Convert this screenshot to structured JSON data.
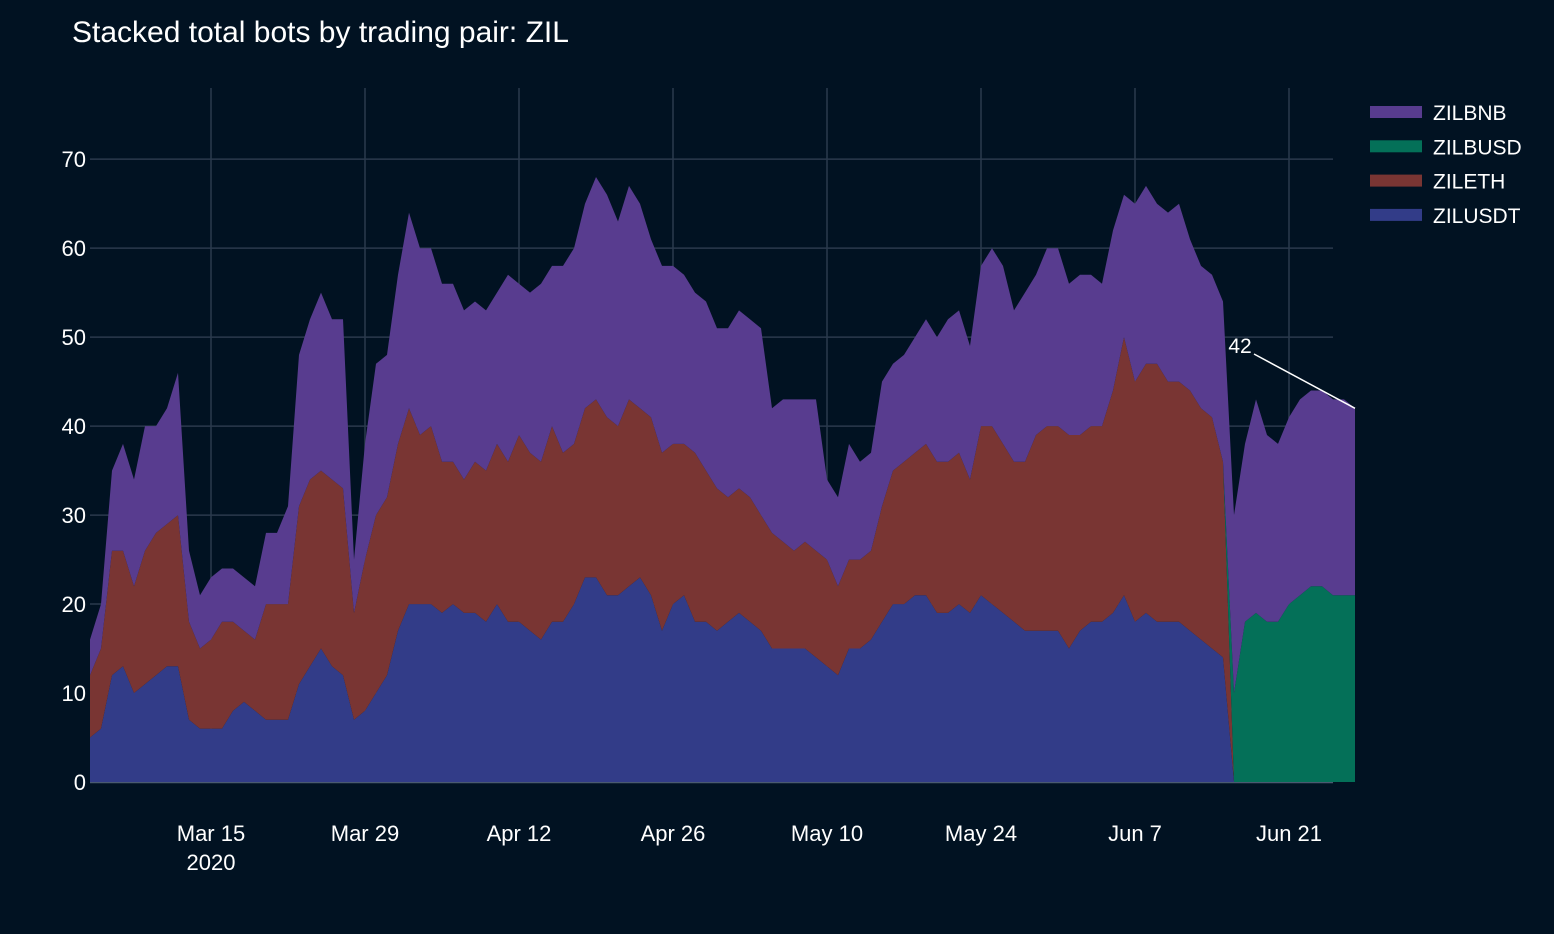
{
  "chart_data": {
    "type": "area",
    "stacked": true,
    "title": "Stacked total bots by trading pair: ZIL",
    "xlabel": "",
    "ylabel": "",
    "x_start": "2020-03-04",
    "x_end": "2020-06-24",
    "x_range": [
      "2020-03-04",
      "2020-06-25"
    ],
    "ylim": [
      0,
      78
    ],
    "y_ticks": [
      0,
      10,
      20,
      30,
      40,
      50,
      60,
      70
    ],
    "x_ticks": [
      {
        "date": "2020-03-15",
        "label": "Mar 15",
        "sublabel": "2020"
      },
      {
        "date": "2020-03-29",
        "label": "Mar 29",
        "sublabel": ""
      },
      {
        "date": "2020-04-12",
        "label": "Apr 12",
        "sublabel": ""
      },
      {
        "date": "2020-04-26",
        "label": "Apr 26",
        "sublabel": ""
      },
      {
        "date": "2020-05-10",
        "label": "May 10",
        "sublabel": ""
      },
      {
        "date": "2020-05-24",
        "label": "May 24",
        "sublabel": ""
      },
      {
        "date": "2020-06-07",
        "label": "Jun 7",
        "sublabel": ""
      },
      {
        "date": "2020-06-21",
        "label": "Jun 21",
        "sublabel": ""
      }
    ],
    "legend_position": "top-right",
    "colors": {
      "ZILUSDT": "#323c88",
      "ZILETH": "#793533",
      "ZILBUSD": "#047058",
      "ZILBNB": "#583c8f"
    },
    "series": [
      {
        "name": "ZILUSDT",
        "values": [
          5,
          6,
          12,
          13,
          10,
          11,
          12,
          13,
          13,
          7,
          6,
          6,
          6,
          8,
          9,
          8,
          7,
          7,
          7,
          11,
          13,
          15,
          13,
          12,
          7,
          8,
          10,
          12,
          17,
          20,
          20,
          20,
          19,
          20,
          19,
          19,
          18,
          20,
          18,
          18,
          17,
          16,
          18,
          18,
          20,
          23,
          23,
          21,
          21,
          22,
          23,
          21,
          17,
          20,
          21,
          18,
          18,
          17,
          18,
          19,
          18,
          17,
          15,
          15,
          15,
          15,
          14,
          13,
          12,
          15,
          15,
          16,
          18,
          20,
          20,
          21,
          21,
          19,
          19,
          20,
          19,
          21,
          20,
          19,
          18,
          17,
          17,
          17,
          17,
          15,
          17,
          18,
          18,
          19,
          21,
          18,
          19,
          18,
          18,
          18,
          17,
          16,
          15,
          14,
          0,
          0,
          0,
          0,
          0,
          0,
          0,
          0,
          0,
          0,
          0,
          0
        ],
        "annotation": "",
        "legend_label": "ZILUSDT"
      },
      {
        "name": "ZILETH",
        "values": [
          7,
          9,
          14,
          13,
          12,
          15,
          16,
          16,
          17,
          11,
          9,
          10,
          12,
          10,
          8,
          8,
          13,
          13,
          13,
          20,
          21,
          20,
          21,
          21,
          12,
          17,
          20,
          20,
          21,
          22,
          19,
          20,
          17,
          16,
          15,
          17,
          17,
          18,
          18,
          21,
          20,
          20,
          22,
          19,
          18,
          19,
          20,
          20,
          19,
          21,
          19,
          20,
          20,
          18,
          17,
          19,
          17,
          16,
          14,
          14,
          14,
          13,
          13,
          12,
          11,
          12,
          12,
          12,
          10,
          10,
          10,
          10,
          13,
          15,
          16,
          16,
          17,
          17,
          17,
          17,
          15,
          19,
          20,
          19,
          18,
          19,
          22,
          23,
          23,
          24,
          22,
          22,
          22,
          25,
          29,
          27,
          28,
          29,
          27,
          27,
          27,
          26,
          26,
          22,
          0,
          0,
          0,
          0,
          0,
          0,
          0,
          0,
          0,
          0,
          0,
          0
        ],
        "annotation": "",
        "legend_label": "ZILETH"
      },
      {
        "name": "ZILBUSD",
        "values": [
          0,
          0,
          0,
          0,
          0,
          0,
          0,
          0,
          0,
          0,
          0,
          0,
          0,
          0,
          0,
          0,
          0,
          0,
          0,
          0,
          0,
          0,
          0,
          0,
          0,
          0,
          0,
          0,
          0,
          0,
          0,
          0,
          0,
          0,
          0,
          0,
          0,
          0,
          0,
          0,
          0,
          0,
          0,
          0,
          0,
          0,
          0,
          0,
          0,
          0,
          0,
          0,
          0,
          0,
          0,
          0,
          0,
          0,
          0,
          0,
          0,
          0,
          0,
          0,
          0,
          0,
          0,
          0,
          0,
          0,
          0,
          0,
          0,
          0,
          0,
          0,
          0,
          0,
          0,
          0,
          0,
          0,
          0,
          0,
          0,
          0,
          0,
          0,
          0,
          0,
          0,
          0,
          0,
          0,
          0,
          0,
          0,
          0,
          0,
          0,
          0,
          0,
          0,
          0,
          10,
          18,
          19,
          18,
          18,
          20,
          21,
          22,
          22,
          21,
          21,
          21
        ],
        "annotation": "",
        "legend_label": "ZILBUSD"
      },
      {
        "name": "ZILBNB",
        "values": [
          4,
          5,
          9,
          12,
          12,
          14,
          12,
          13,
          16,
          8,
          6,
          7,
          6,
          6,
          6,
          6,
          8,
          8,
          11,
          17,
          18,
          20,
          18,
          19,
          6,
          13,
          17,
          16,
          19,
          22,
          21,
          20,
          20,
          20,
          19,
          18,
          18,
          17,
          21,
          17,
          18,
          20,
          18,
          21,
          22,
          23,
          25,
          25,
          23,
          24,
          23,
          20,
          21,
          20,
          19,
          18,
          19,
          18,
          19,
          20,
          20,
          21,
          14,
          16,
          17,
          16,
          17,
          9,
          10,
          13,
          11,
          11,
          14,
          12,
          12,
          13,
          14,
          14,
          16,
          16,
          15,
          18,
          20,
          20,
          17,
          19,
          18,
          20,
          20,
          17,
          18,
          17,
          16,
          18,
          16,
          20,
          20,
          18,
          19,
          20,
          17,
          16,
          16,
          18,
          20,
          20,
          24,
          21,
          20,
          21,
          22,
          22,
          22,
          22,
          22,
          21
        ],
        "annotation": "42",
        "legend_label": "ZILBNB"
      }
    ]
  }
}
